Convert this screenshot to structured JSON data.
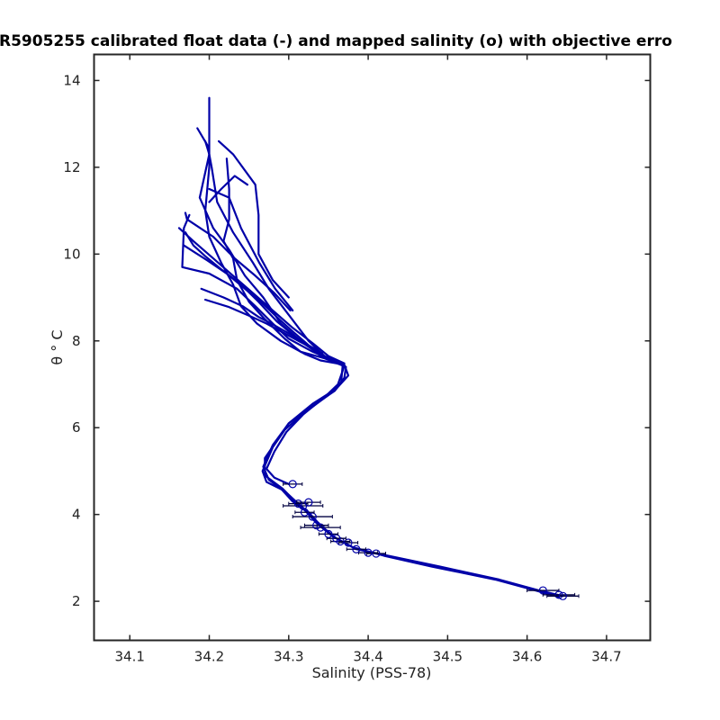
{
  "chart_data": {
    "type": "line",
    "title": "R5905255 calibrated float data (-) and mapped salinity (o) with objective erro",
    "xlabel": "Salinity (PSS-78)",
    "ylabel": "θ ° C",
    "xlim": [
      34.055,
      34.755
    ],
    "ylim": [
      1.1,
      14.6
    ],
    "xticks": [
      34.1,
      34.2,
      34.3,
      34.4,
      34.5,
      34.6,
      34.7
    ],
    "xtick_labels": [
      "34.1",
      "34.2",
      "34.3",
      "34.4",
      "34.5",
      "34.6",
      "34.7"
    ],
    "yticks": [
      2,
      4,
      6,
      8,
      10,
      12,
      14
    ],
    "ytick_labels": [
      "2",
      "4",
      "6",
      "8",
      "10",
      "12",
      "14"
    ],
    "grid": false,
    "color": "#0000a8",
    "series": [
      {
        "x": [
          34.2,
          34.2,
          34.195,
          34.2,
          34.215,
          34.23,
          34.24,
          34.26,
          34.29,
          34.32,
          34.34,
          34.37,
          34.375,
          34.36,
          34.33,
          34.3,
          34.28,
          34.268,
          34.275,
          34.29,
          34.305,
          34.32,
          34.335,
          34.355,
          34.38,
          34.42,
          34.48,
          34.56,
          34.61,
          34.64
        ],
        "y": [
          13.6,
          12.0,
          11.0,
          10.4,
          9.8,
          9.3,
          8.8,
          8.4,
          8.0,
          7.7,
          7.55,
          7.45,
          7.2,
          6.9,
          6.55,
          6.1,
          5.6,
          5.1,
          4.8,
          4.6,
          4.3,
          4.1,
          3.8,
          3.5,
          3.25,
          3.05,
          2.8,
          2.5,
          2.25,
          2.1
        ]
      },
      {
        "x": [
          34.222,
          34.225,
          34.225,
          34.218,
          34.23,
          34.235,
          34.25,
          34.27,
          34.295,
          34.315,
          34.345,
          34.372,
          34.37,
          34.358,
          34.33,
          34.3,
          34.285,
          34.27,
          34.27,
          34.292,
          34.308,
          34.325,
          34.34,
          34.36,
          34.385,
          34.425,
          34.49,
          34.565,
          34.615,
          34.645
        ],
        "y": [
          12.2,
          11.5,
          10.8,
          10.3,
          9.9,
          9.4,
          8.9,
          8.5,
          8.05,
          7.75,
          7.6,
          7.4,
          7.15,
          6.85,
          6.5,
          6.1,
          5.7,
          5.3,
          4.9,
          4.6,
          4.3,
          4.05,
          3.75,
          3.45,
          3.2,
          3.05,
          2.8,
          2.5,
          2.25,
          2.12
        ]
      },
      {
        "x": [
          34.185,
          34.198,
          34.203,
          34.21,
          34.23,
          34.255,
          34.275,
          34.3,
          34.325,
          34.345,
          34.368,
          34.366,
          34.35,
          34.32,
          34.295,
          34.28,
          34.267,
          34.272,
          34.294,
          34.312,
          34.33
        ],
        "y": [
          12.9,
          12.5,
          12.0,
          11.2,
          10.5,
          9.8,
          9.2,
          8.6,
          8.0,
          7.65,
          7.45,
          7.05,
          6.75,
          6.35,
          5.95,
          5.55,
          5.0,
          4.75,
          4.55,
          4.25,
          3.95
        ]
      },
      {
        "x": [
          34.195,
          34.2,
          34.188,
          34.205,
          34.225,
          34.245,
          34.268,
          34.29,
          34.318,
          34.345,
          34.37,
          34.362,
          34.346,
          34.318,
          34.297,
          34.282,
          34.272,
          34.282,
          34.3
        ],
        "y": [
          12.6,
          12.3,
          11.3,
          10.6,
          10.1,
          9.5,
          9.0,
          8.4,
          7.95,
          7.62,
          7.42,
          7.0,
          6.72,
          6.3,
          5.9,
          5.45,
          5.05,
          4.85,
          4.7
        ]
      },
      {
        "x": [
          34.17,
          34.18,
          34.195,
          34.215,
          34.24,
          34.262,
          34.285,
          34.308,
          34.33,
          34.355,
          34.368
        ],
        "y": [
          10.5,
          10.2,
          9.95,
          9.65,
          9.3,
          8.9,
          8.45,
          8.1,
          7.8,
          7.55,
          7.45
        ]
      },
      {
        "x": [
          34.162,
          34.18,
          34.205,
          34.23,
          34.255,
          34.28,
          34.305,
          34.33,
          34.35,
          34.37
        ],
        "y": [
          10.6,
          10.3,
          9.9,
          9.5,
          9.1,
          8.7,
          8.3,
          7.95,
          7.65,
          7.48
        ]
      },
      {
        "x": [
          34.168,
          34.198,
          34.222,
          34.245,
          34.268,
          34.288,
          34.306,
          34.322,
          34.34
        ],
        "y": [
          10.2,
          9.85,
          9.55,
          9.2,
          8.85,
          8.5,
          8.2,
          7.95,
          7.65
        ]
      },
      {
        "x": [
          34.175,
          34.168,
          34.166,
          34.2,
          34.235,
          34.258,
          34.28,
          34.3,
          34.33,
          34.362
        ],
        "y": [
          10.9,
          10.6,
          9.7,
          9.55,
          9.2,
          8.8,
          8.4,
          8.05,
          7.75,
          7.5
        ]
      },
      {
        "x": [
          34.17,
          34.172,
          34.205,
          34.232,
          34.258,
          34.282,
          34.302
        ],
        "y": [
          10.95,
          10.8,
          10.4,
          9.9,
          9.5,
          9.1,
          8.7
        ]
      },
      {
        "x": [
          34.19,
          34.218,
          34.242,
          34.262,
          34.283,
          34.302,
          34.32,
          34.342
        ],
        "y": [
          9.2,
          9.0,
          8.8,
          8.55,
          8.35,
          8.15,
          7.95,
          7.72
        ]
      },
      {
        "x": [
          34.195,
          34.225,
          34.25,
          34.272,
          34.292,
          34.314,
          34.336
        ],
        "y": [
          8.95,
          8.78,
          8.58,
          8.4,
          8.2,
          7.98,
          7.78
        ]
      },
      {
        "x": [
          34.2,
          34.215,
          34.232,
          34.248
        ],
        "y": [
          11.2,
          11.5,
          11.8,
          11.6
        ]
      },
      {
        "x": [
          34.212,
          34.23,
          34.258,
          34.262,
          34.262,
          34.28,
          34.3
        ],
        "y": [
          12.6,
          12.3,
          11.6,
          10.9,
          10.0,
          9.4,
          9.0
        ]
      },
      {
        "x": [
          34.2,
          34.225,
          34.24,
          34.263,
          34.283,
          34.305
        ],
        "y": [
          11.5,
          11.3,
          10.6,
          9.8,
          9.2,
          8.7
        ]
      }
    ],
    "mapped_points": {
      "x": [
        34.62,
        34.64,
        34.645,
        34.41,
        34.4,
        34.385,
        34.375,
        34.365,
        34.36,
        34.35,
        34.34,
        34.335,
        34.33,
        34.32,
        34.318,
        34.312,
        34.325,
        34.305
      ],
      "y": [
        2.25,
        2.15,
        2.12,
        3.1,
        3.12,
        3.2,
        3.35,
        3.38,
        3.45,
        3.55,
        3.7,
        3.75,
        3.95,
        4.05,
        4.2,
        4.25,
        4.28,
        4.7
      ],
      "err": [
        0.02,
        0.02,
        0.02,
        0.012,
        0.012,
        0.012,
        0.012,
        0.012,
        0.012,
        0.012,
        0.025,
        0.015,
        0.025,
        0.012,
        0.025,
        0.012,
        0.015,
        0.012
      ]
    }
  }
}
